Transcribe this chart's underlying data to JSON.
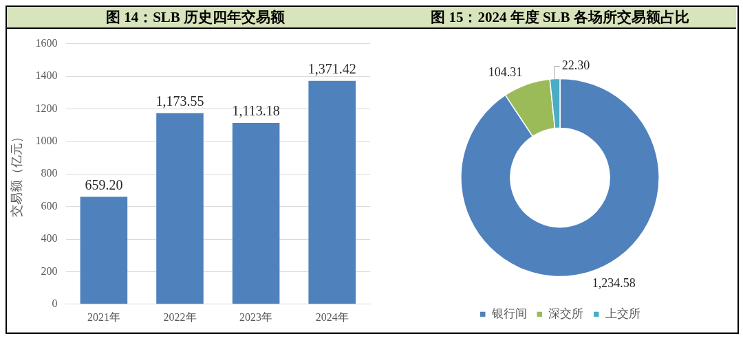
{
  "chart_data": [
    {
      "type": "bar",
      "title": "图 14：SLB 历史四年交易额",
      "ylabel": "交易额（亿元）",
      "categories": [
        "2021年",
        "2022年",
        "2023年",
        "2024年"
      ],
      "values": [
        659.2,
        1173.55,
        1113.18,
        1371.42
      ],
      "value_labels": [
        "659.20",
        "1,173.55",
        "1,113.18",
        "1,371.42"
      ],
      "color": "#4f81bd",
      "ylim": [
        0,
        1600
      ],
      "yticks": [
        0,
        200,
        400,
        600,
        800,
        1000,
        1200,
        1400,
        1600
      ],
      "grid": "y"
    },
    {
      "type": "donut",
      "title": "图 15：2024 年度 SLB 各场所交易额占比",
      "categories": [
        "银行间",
        "深交所",
        "上交所"
      ],
      "values": [
        1234.58,
        104.31,
        22.3
      ],
      "value_labels": [
        "1,234.58",
        "104.31",
        "22.30"
      ],
      "colors": [
        "#4f81bd",
        "#9bbb59",
        "#4bacc6"
      ],
      "legend": "bottom"
    }
  ]
}
